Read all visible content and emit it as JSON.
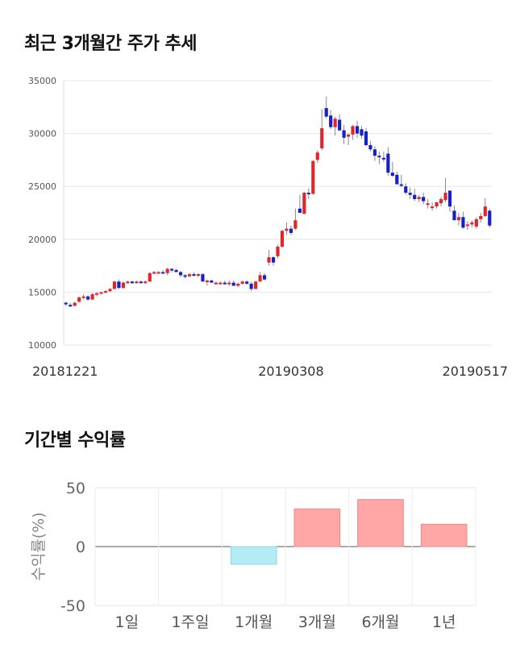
{
  "sections": {
    "price_title": "최근 3개월간 주가 추세",
    "return_title": "기간별 수익률"
  },
  "colors": {
    "up": "#e0262b",
    "down": "#1420c8",
    "gain_bar": "#ffa6a6",
    "loss_bar": "#b3ecf5"
  },
  "chart_data": [
    {
      "type": "candlestick",
      "title": "최근 3개월간 주가 추세",
      "ylim": [
        10000,
        35000
      ],
      "y_ticks": [
        "35000",
        "30000",
        "25000",
        "20000",
        "15000",
        "10000"
      ],
      "x_tick_labels": [
        {
          "label": "20181221",
          "index": 0
        },
        {
          "label": "20190308",
          "index": 51
        },
        {
          "label": "20190517",
          "index": 98
        }
      ],
      "grid": true,
      "candles": [
        [
          14000,
          14100,
          13700,
          13900
        ],
        [
          13800,
          14000,
          13600,
          13700
        ],
        [
          13700,
          14100,
          13700,
          14000
        ],
        [
          14100,
          14600,
          14000,
          14500
        ],
        [
          14500,
          14800,
          14300,
          14600
        ],
        [
          14600,
          14700,
          14200,
          14300
        ],
        [
          14300,
          14900,
          14300,
          14800
        ],
        [
          14800,
          15000,
          14600,
          14900
        ],
        [
          14900,
          15000,
          14800,
          15000
        ],
        [
          15000,
          15200,
          14900,
          15100
        ],
        [
          15100,
          15400,
          15000,
          15300
        ],
        [
          15300,
          16100,
          15300,
          16000
        ],
        [
          16000,
          16200,
          15300,
          15400
        ],
        [
          15400,
          16000,
          15300,
          15900
        ],
        [
          15900,
          16100,
          15800,
          16000
        ],
        [
          16000,
          16100,
          15800,
          15900
        ],
        [
          15900,
          16100,
          15800,
          16000
        ],
        [
          16000,
          16100,
          15900,
          15900
        ],
        [
          15900,
          16100,
          15800,
          16000
        ],
        [
          16000,
          16900,
          16000,
          16800
        ],
        [
          16800,
          17000,
          16700,
          16900
        ],
        [
          16900,
          17000,
          16800,
          16900
        ],
        [
          16900,
          17100,
          16800,
          16800
        ],
        [
          16800,
          17300,
          16600,
          17200
        ],
        [
          17200,
          17300,
          16900,
          17100
        ],
        [
          17100,
          17200,
          16900,
          16900
        ],
        [
          16900,
          17000,
          16400,
          16600
        ],
        [
          16600,
          16700,
          16300,
          16500
        ],
        [
          16500,
          16800,
          16400,
          16700
        ],
        [
          16700,
          16900,
          16500,
          16600
        ],
        [
          16600,
          16800,
          16400,
          16700
        ],
        [
          16700,
          16800,
          16200,
          16000
        ],
        [
          16000,
          16200,
          15600,
          16100
        ],
        [
          16100,
          16200,
          15900,
          15900
        ],
        [
          15900,
          16000,
          15700,
          15900
        ],
        [
          15900,
          16000,
          15700,
          15900
        ],
        [
          15900,
          16100,
          15700,
          15800
        ],
        [
          15800,
          16100,
          15600,
          15900
        ],
        [
          15900,
          16100,
          15600,
          15600
        ],
        [
          15600,
          15900,
          15500,
          15800
        ],
        [
          15800,
          16100,
          15700,
          16000
        ],
        [
          16000,
          16100,
          15700,
          15800
        ],
        [
          15800,
          16000,
          15100,
          15300
        ],
        [
          15300,
          16100,
          15300,
          16000
        ],
        [
          16000,
          16900,
          16000,
          16600
        ],
        [
          16600,
          16800,
          16100,
          16200
        ],
        [
          17800,
          19000,
          17500,
          18300
        ],
        [
          18300,
          18400,
          17500,
          17800
        ],
        [
          18400,
          19500,
          18200,
          19300
        ],
        [
          19300,
          20900,
          19200,
          20800
        ],
        [
          20800,
          21600,
          20400,
          21000
        ],
        [
          21000,
          21300,
          20400,
          20600
        ],
        [
          21000,
          22900,
          20900,
          21800
        ],
        [
          22900,
          24200,
          22600,
          22500
        ],
        [
          22400,
          24500,
          22400,
          24400
        ],
        [
          24400,
          24800,
          23800,
          24300
        ],
        [
          24300,
          27500,
          24200,
          27400
        ],
        [
          27500,
          28400,
          27200,
          28200
        ],
        [
          28600,
          32300,
          28400,
          30500
        ],
        [
          32400,
          33500,
          31400,
          31600
        ],
        [
          31700,
          32200,
          30400,
          30600
        ],
        [
          30600,
          31600,
          29800,
          31400
        ],
        [
          31300,
          31800,
          30200,
          30300
        ],
        [
          30300,
          30800,
          29000,
          29600
        ],
        [
          29700,
          30000,
          28900,
          29900
        ],
        [
          29900,
          30800,
          29400,
          30700
        ],
        [
          30700,
          31200,
          29600,
          30000
        ],
        [
          30400,
          30700,
          29500,
          29800
        ],
        [
          30200,
          30500,
          28800,
          28900
        ],
        [
          28900,
          29300,
          28300,
          28500
        ],
        [
          28500,
          28800,
          27400,
          27900
        ],
        [
          27900,
          28300,
          27100,
          27800
        ],
        [
          27700,
          28300,
          27300,
          27600
        ],
        [
          28100,
          28700,
          26000,
          26300
        ],
        [
          26300,
          27300,
          25900,
          26000
        ],
        [
          26100,
          26400,
          25200,
          25200
        ],
        [
          25200,
          26100,
          24900,
          25100
        ],
        [
          25000,
          25300,
          24200,
          24400
        ],
        [
          24400,
          24900,
          23800,
          24200
        ],
        [
          24200,
          24800,
          23600,
          23800
        ],
        [
          23800,
          24200,
          23500,
          24000
        ],
        [
          24000,
          24400,
          23300,
          23600
        ],
        [
          23300,
          23800,
          22900,
          23400
        ],
        [
          23000,
          23500,
          22700,
          23100
        ],
        [
          23100,
          23500,
          22900,
          23500
        ],
        [
          23400,
          24000,
          23100,
          23800
        ],
        [
          23700,
          25800,
          23500,
          24400
        ],
        [
          24600,
          24600,
          22600,
          23100
        ],
        [
          22700,
          23200,
          21900,
          21800
        ],
        [
          21800,
          22500,
          21300,
          22100
        ],
        [
          22100,
          22600,
          21000,
          21100
        ],
        [
          21300,
          21700,
          20900,
          21400
        ],
        [
          21400,
          21800,
          21100,
          21600
        ],
        [
          21200,
          22100,
          21000,
          21900
        ],
        [
          21900,
          22500,
          21600,
          22200
        ],
        [
          22200,
          23900,
          22100,
          23100
        ],
        [
          22700,
          22900,
          21100,
          21300
        ]
      ]
    },
    {
      "type": "bar",
      "title": "기간별 수익률",
      "ylabel": "수익률(%)",
      "ylim": [
        -50,
        50
      ],
      "y_ticks": [
        "50",
        "0",
        "-50"
      ],
      "categories": [
        "1일",
        "1주일",
        "1개월",
        "3개월",
        "6개월",
        "1년"
      ],
      "values": [
        0,
        0,
        -15,
        32,
        40,
        19
      ],
      "grid": true
    }
  ]
}
